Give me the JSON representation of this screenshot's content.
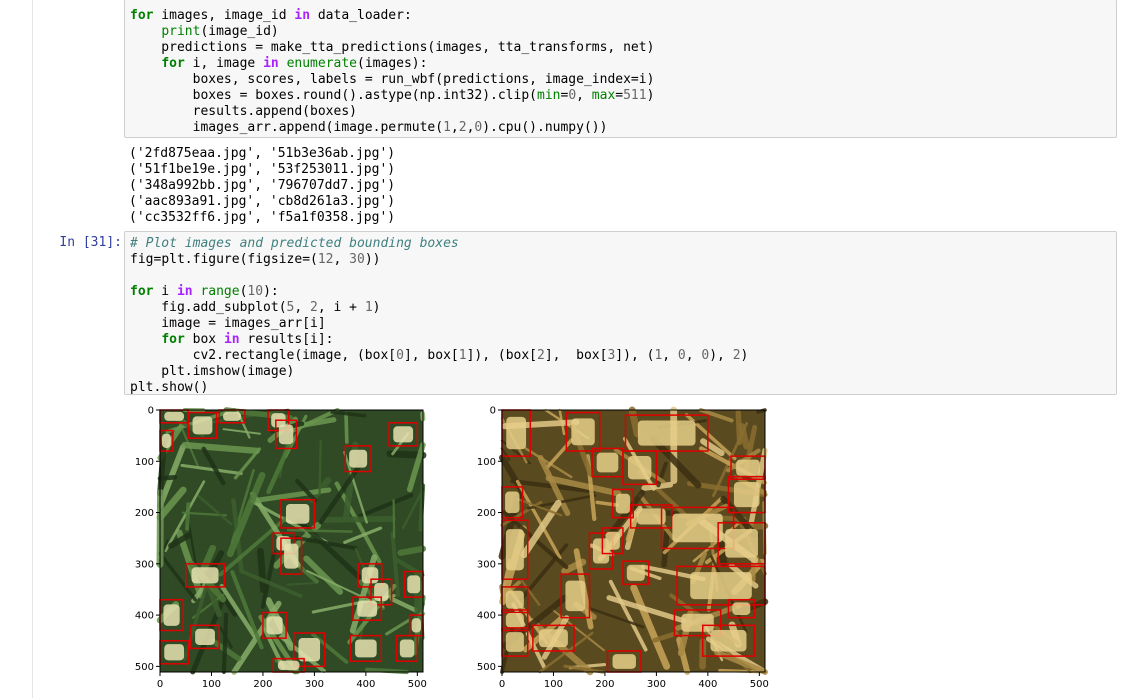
{
  "cell_top": {
    "lines": [
      [
        [
          "kw",
          "for"
        ],
        [
          "t",
          " images, image_id "
        ],
        [
          "kw2",
          "in"
        ],
        [
          "t",
          " data_loader:"
        ]
      ],
      [
        [
          "t",
          "    "
        ],
        [
          "bi",
          "print"
        ],
        [
          "t",
          "(image_id)"
        ]
      ],
      [
        [
          "t",
          "    predictions "
        ],
        [
          "t",
          "="
        ],
        [
          "t",
          " make_tta_predictions(images, tta_transforms, net)"
        ]
      ],
      [
        [
          "t",
          "    "
        ],
        [
          "kw",
          "for"
        ],
        [
          "t",
          " i, image "
        ],
        [
          "kw2",
          "in"
        ],
        [
          "t",
          " "
        ],
        [
          "bi",
          "enumerate"
        ],
        [
          "t",
          "(images):"
        ]
      ],
      [
        [
          "t",
          "        boxes, scores, labels "
        ],
        [
          "t",
          "="
        ],
        [
          "t",
          " run_wbf(predictions, image_index"
        ],
        [
          "t",
          "="
        ],
        [
          "t",
          "i)"
        ]
      ],
      [
        [
          "t",
          "        boxes "
        ],
        [
          "t",
          "="
        ],
        [
          "t",
          " boxes.round().astype(np.int32).clip("
        ],
        [
          "arg",
          "min"
        ],
        [
          "t",
          "="
        ],
        [
          "num",
          "0"
        ],
        [
          "t",
          ", "
        ],
        [
          "arg",
          "max"
        ],
        [
          "t",
          "="
        ],
        [
          "num",
          "511"
        ],
        [
          "t",
          ")"
        ]
      ],
      [
        [
          "t",
          "        results.append(boxes)"
        ]
      ],
      [
        [
          "t",
          "        images_arr.append(image.permute("
        ],
        [
          "num",
          "1"
        ],
        [
          "t",
          ","
        ],
        [
          "num",
          "2"
        ],
        [
          "t",
          ","
        ],
        [
          "num",
          "0"
        ],
        [
          "t",
          ").cpu().numpy())"
        ]
      ]
    ]
  },
  "output_top": {
    "lines": [
      "('2fd875eaa.jpg', '51b3e36ab.jpg')",
      "('51f1be19e.jpg', '53f253011.jpg')",
      "('348a992bb.jpg', '796707dd7.jpg')",
      "('aac893a91.jpg', 'cb8d261a3.jpg')",
      "('cc3532ff6.jpg', 'f5a1f0358.jpg')"
    ]
  },
  "cell_31": {
    "prompt": "In [31]:",
    "lines": [
      [
        [
          "com",
          "# Plot images and predicted bounding boxes"
        ]
      ],
      [
        [
          "t",
          "fig"
        ],
        [
          "t",
          "="
        ],
        [
          "t",
          "plt.figure(figsize"
        ],
        [
          "t",
          "="
        ],
        [
          "t",
          "("
        ],
        [
          "num",
          "12"
        ],
        [
          "t",
          ", "
        ],
        [
          "num",
          "30"
        ],
        [
          "t",
          "))"
        ]
      ],
      [
        [
          "t",
          ""
        ]
      ],
      [
        [
          "kw",
          "for"
        ],
        [
          "t",
          " i "
        ],
        [
          "kw2",
          "in"
        ],
        [
          "t",
          " "
        ],
        [
          "bi",
          "range"
        ],
        [
          "t",
          "("
        ],
        [
          "num",
          "10"
        ],
        [
          "t",
          "):"
        ]
      ],
      [
        [
          "t",
          "    fig.add_subplot("
        ],
        [
          "num",
          "5"
        ],
        [
          "t",
          ", "
        ],
        [
          "num",
          "2"
        ],
        [
          "t",
          ", i "
        ],
        [
          "t",
          "+"
        ],
        [
          "t",
          " "
        ],
        [
          "num",
          "1"
        ],
        [
          "t",
          ")"
        ]
      ],
      [
        [
          "t",
          "    image "
        ],
        [
          "t",
          "="
        ],
        [
          "t",
          " images_arr[i]"
        ]
      ],
      [
        [
          "t",
          "    "
        ],
        [
          "kw",
          "for"
        ],
        [
          "t",
          " box "
        ],
        [
          "kw2",
          "in"
        ],
        [
          "t",
          " results[i]:"
        ]
      ],
      [
        [
          "t",
          "        cv2.rectangle(image, (box["
        ],
        [
          "num",
          "0"
        ],
        [
          "t",
          "], box["
        ],
        [
          "num",
          "1"
        ],
        [
          "t",
          "]), (box["
        ],
        [
          "num",
          "2"
        ],
        [
          "t",
          "],  box["
        ],
        [
          "num",
          "3"
        ],
        [
          "t",
          "]), ("
        ],
        [
          "num",
          "1"
        ],
        [
          "t",
          ", "
        ],
        [
          "num",
          "0"
        ],
        [
          "t",
          ", "
        ],
        [
          "num",
          "0"
        ],
        [
          "t",
          "), "
        ],
        [
          "num",
          "2"
        ],
        [
          "t",
          ")"
        ]
      ],
      [
        [
          "t",
          "    plt.imshow(image)"
        ]
      ],
      [
        [
          "t",
          "plt.show()"
        ]
      ]
    ]
  },
  "plots": [
    {
      "name": "plot-green-wheat",
      "x_ticks": [
        "0",
        "100",
        "200",
        "300",
        "400",
        "500"
      ],
      "y_ticks": [
        "0",
        "100",
        "200",
        "300",
        "400",
        "500"
      ],
      "xlim": [
        0,
        511
      ],
      "ylim": [
        511,
        0
      ],
      "bg_color": "#2f4a25",
      "boxes": [
        [
          0,
          0,
          55,
          25
        ],
        [
          55,
          5,
          110,
          55
        ],
        [
          115,
          0,
          165,
          25
        ],
        [
          210,
          0,
          250,
          40
        ],
        [
          225,
          20,
          265,
          75
        ],
        [
          445,
          25,
          500,
          70
        ],
        [
          360,
          70,
          410,
          120
        ],
        [
          0,
          40,
          25,
          80
        ],
        [
          235,
          175,
          300,
          230
        ],
        [
          220,
          240,
          260,
          280
        ],
        [
          235,
          250,
          275,
          320
        ],
        [
          50,
          300,
          125,
          345
        ],
        [
          0,
          370,
          45,
          430
        ],
        [
          385,
          300,
          431,
          345
        ],
        [
          410,
          330,
          450,
          380
        ],
        [
          375,
          365,
          430,
          410
        ],
        [
          475,
          315,
          511,
          365
        ],
        [
          200,
          395,
          245,
          445
        ],
        [
          60,
          420,
          115,
          465
        ],
        [
          260,
          435,
          320,
          500
        ],
        [
          370,
          440,
          430,
          490
        ],
        [
          460,
          440,
          500,
          490
        ],
        [
          0,
          450,
          55,
          495
        ],
        [
          220,
          485,
          280,
          511
        ],
        [
          485,
          400,
          511,
          440
        ]
      ],
      "colors": {
        "box": "#e00000"
      }
    },
    {
      "name": "plot-ripe-wheat",
      "x_ticks": [
        "0",
        "100",
        "200",
        "300",
        "400",
        "500"
      ],
      "y_ticks": [
        "0",
        "100",
        "200",
        "300",
        "400",
        "500"
      ],
      "xlim": [
        0,
        511
      ],
      "ylim": [
        511,
        0
      ],
      "bg_color": "#5a4a1f",
      "boxes": [
        [
          0,
          0,
          55,
          90
        ],
        [
          125,
          5,
          190,
          80
        ],
        [
          240,
          10,
          400,
          80
        ],
        [
          175,
          75,
          235,
          130
        ],
        [
          235,
          80,
          300,
          145
        ],
        [
          445,
          90,
          511,
          135
        ],
        [
          215,
          155,
          255,
          210
        ],
        [
          0,
          150,
          40,
          210
        ],
        [
          250,
          185,
          330,
          230
        ],
        [
          310,
          190,
          450,
          270
        ],
        [
          440,
          130,
          511,
          200
        ],
        [
          0,
          215,
          50,
          330
        ],
        [
          170,
          240,
          215,
          310
        ],
        [
          195,
          230,
          235,
          280
        ],
        [
          420,
          220,
          511,
          300
        ],
        [
          115,
          320,
          170,
          405
        ],
        [
          235,
          295,
          285,
          340
        ],
        [
          340,
          305,
          511,
          380
        ],
        [
          0,
          345,
          50,
          395
        ],
        [
          0,
          390,
          50,
          430
        ],
        [
          335,
          390,
          425,
          440
        ],
        [
          390,
          420,
          490,
          480
        ],
        [
          0,
          425,
          50,
          480
        ],
        [
          60,
          420,
          140,
          470
        ],
        [
          440,
          370,
          490,
          405
        ],
        [
          205,
          470,
          270,
          511
        ]
      ],
      "colors": {
        "box": "#e00000"
      }
    }
  ]
}
